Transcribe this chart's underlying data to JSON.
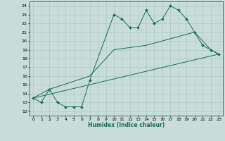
{
  "xlabel": "Humidex (Indice chaleur)",
  "background_color": "#c8ddd8",
  "line_color": "#1a6b5a",
  "grid_color": "#aaccc8",
  "xlim": [
    -0.5,
    23.5
  ],
  "ylim": [
    11.5,
    24.5
  ],
  "xticks": [
    0,
    1,
    2,
    3,
    4,
    5,
    6,
    7,
    8,
    9,
    10,
    11,
    12,
    13,
    14,
    15,
    16,
    17,
    18,
    19,
    20,
    21,
    22,
    23
  ],
  "yticks": [
    12,
    13,
    14,
    15,
    16,
    17,
    18,
    19,
    20,
    21,
    22,
    23,
    24
  ],
  "line1_x": [
    0,
    1,
    2,
    3,
    4,
    5,
    6,
    7,
    10,
    11,
    12,
    13,
    14,
    15,
    16,
    17,
    18,
    19,
    20,
    21,
    22,
    23
  ],
  "line1_y": [
    13.5,
    13.0,
    14.5,
    13.0,
    12.5,
    12.5,
    12.5,
    15.5,
    23.0,
    22.5,
    21.5,
    21.5,
    23.5,
    22.0,
    22.5,
    24.0,
    23.5,
    22.5,
    21.0,
    19.5,
    19.0,
    18.5
  ],
  "line2_x": [
    0,
    23
  ],
  "line2_y": [
    13.5,
    18.5
  ],
  "line3_x": [
    0,
    2,
    7,
    10,
    14,
    20,
    22,
    23
  ],
  "line3_y": [
    13.5,
    14.5,
    16.0,
    19.0,
    19.5,
    21.0,
    19.0,
    18.5
  ]
}
